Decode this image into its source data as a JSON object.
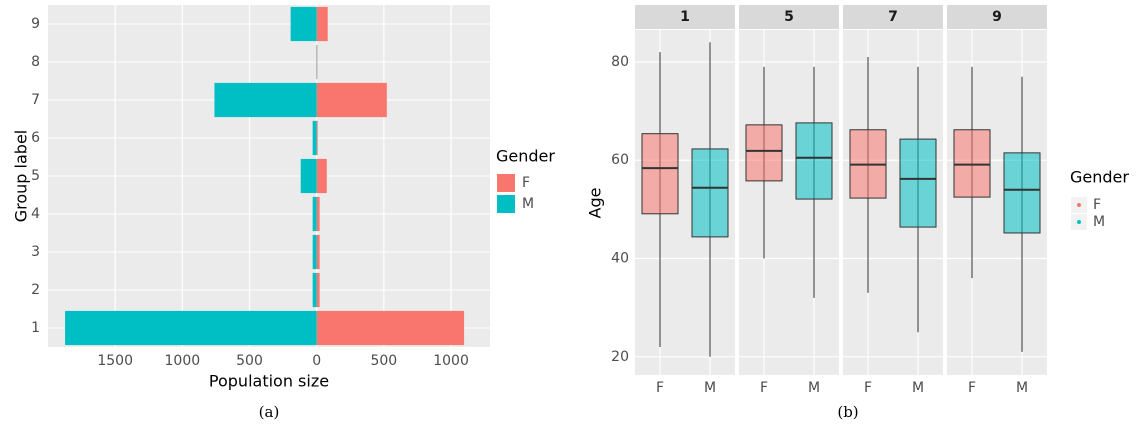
{
  "chart_data": [
    {
      "type": "pyramid",
      "x_label": "Population size",
      "y_label": "Group label",
      "categories": [
        "1",
        "2",
        "3",
        "4",
        "5",
        "6",
        "7",
        "8",
        "9"
      ],
      "series": [
        {
          "name": "F",
          "color": "#F8766D",
          "values": [
            1097,
            22,
            22,
            22,
            75,
            7,
            522,
            5,
            82
          ]
        },
        {
          "name": "M",
          "color": "#00BFC4",
          "values": [
            -1873,
            -30,
            -30,
            -30,
            -119,
            -30,
            -761,
            -3,
            -194
          ]
        }
      ],
      "xlim": [
        -2000,
        1290
      ],
      "xticks": [
        {
          "value": -1500,
          "label": "1500"
        },
        {
          "value": -1000,
          "label": "1000"
        },
        {
          "value": -500,
          "label": "500"
        },
        0,
        500,
        1000
      ],
      "legend_title": "Gender",
      "grid": true
    },
    {
      "type": "box",
      "y_label": "Age",
      "facets": [
        "1",
        "5",
        "7",
        "9"
      ],
      "categories": [
        "F",
        "M"
      ],
      "series": [
        {
          "name": "F",
          "color": "#F8766D",
          "whisker_low": [
            22,
            40,
            33,
            36
          ],
          "q1": [
            49.1,
            55.8,
            52.3,
            52.5
          ],
          "median": [
            58.4,
            61.9,
            59.1,
            59.1
          ],
          "q3": [
            65.4,
            67.2,
            66.2,
            66.2
          ],
          "whisker_high": [
            82,
            79,
            81,
            79
          ]
        },
        {
          "name": "M",
          "color": "#00BFC4",
          "whisker_low": [
            20,
            32,
            25,
            21
          ],
          "q1": [
            44.4,
            52.1,
            46.4,
            45.2
          ],
          "median": [
            54.4,
            60.5,
            56.2,
            54.0
          ],
          "q3": [
            62.3,
            67.6,
            64.3,
            61.5
          ],
          "whisker_high": [
            84,
            79,
            79,
            77
          ]
        }
      ],
      "ylim": [
        16.3,
        86.5
      ],
      "yticks": [
        20,
        40,
        60,
        80
      ],
      "legend_title": "Gender",
      "grid": true
    }
  ],
  "captions": [
    "(a)",
    "(b)"
  ]
}
